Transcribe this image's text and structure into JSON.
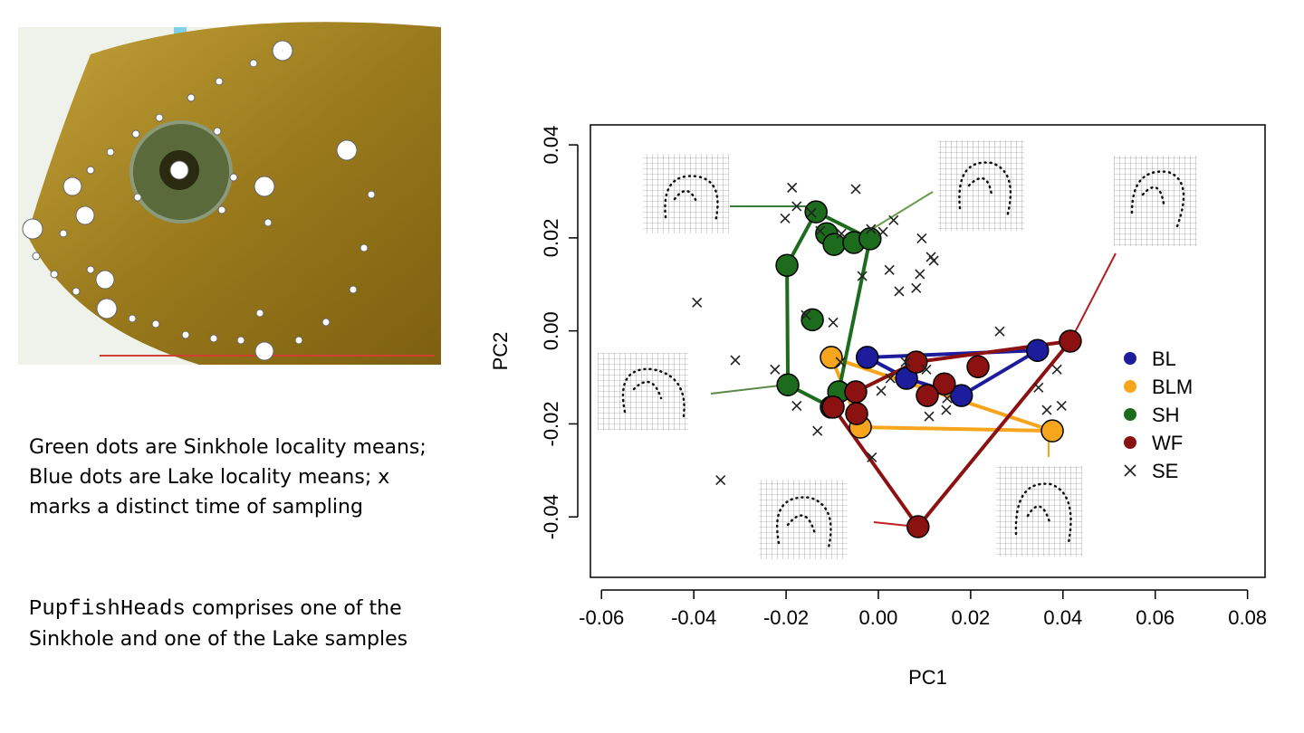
{
  "slide": {
    "caption_1": "Green dots are Sinkhole locality means; Blue dots are Lake locality means; x marks a distinct time of sampling",
    "caption_2_code": "PupfishHeads",
    "caption_2_text": "comprises one of the Sinkhole and one of the Lake samples"
  },
  "chart_data": {
    "type": "scatter",
    "xlabel": "PC1",
    "ylabel": "PC2",
    "xlim": [
      -0.0624,
      0.0838
    ],
    "ylim": [
      -0.053,
      0.0443
    ],
    "xticks": [
      -0.06,
      -0.04,
      -0.02,
      {
        "value": 0,
        "label": "0.00"
      },
      0.02,
      0.04,
      0.06,
      0.08
    ],
    "yticks": [
      -0.04,
      -0.02,
      {
        "value": 0,
        "label": "0.00"
      },
      0.02,
      0.04
    ],
    "legend": "right",
    "series": [
      {
        "name": "BL",
        "color": "#1c1c9c",
        "x": [
          -0.0024,
          0.0345,
          0.018,
          0.0061
        ],
        "values": [
          -0.0057,
          -0.0042,
          -0.0139,
          -0.0102
        ]
      },
      {
        "name": "BLM",
        "color": "#f7a51c",
        "x": [
          -0.0102,
          -0.0039,
          0.0377
        ],
        "values": [
          -0.0057,
          -0.0207,
          -0.0215
        ]
      },
      {
        "name": "SH",
        "color": "#1d6b1d",
        "x": [
          -0.0135,
          -0.0112,
          -0.0096,
          -0.0053,
          -0.0018,
          -0.0198,
          -0.0143,
          -0.0196,
          -0.0102,
          -0.0086
        ],
        "values": [
          0.0256,
          0.0209,
          0.0186,
          0.019,
          0.0198,
          0.0141,
          0.0024,
          -0.0116,
          -0.0164,
          -0.0131
        ]
      },
      {
        "name": "WF",
        "color": "#8c1212",
        "x": [
          0.0416,
          0.0082,
          0.0216,
          0.0143,
          0.0106,
          -0.0049,
          -0.0047,
          -0.0098,
          0.0086
        ],
        "values": [
          -0.0022,
          -0.0067,
          -0.0077,
          -0.0114,
          -0.0139,
          -0.0131,
          -0.0178,
          -0.0164,
          -0.0421
        ]
      },
      {
        "name": "SE",
        "color": "#222222",
        "x": [
          -0.0187,
          -0.0049,
          -0.0202,
          -0.0177,
          -0.0145,
          -0.0126,
          -0.008,
          -0.0016,
          0.0033,
          0.001,
          0.0094,
          0.0114,
          0.012,
          0.0024,
          0.009,
          0.0082,
          0.0045,
          -0.0035,
          -0.0393,
          -0.0157,
          -0.0098,
          0.0263,
          -0.031,
          -0.0224,
          -0.0082,
          0.0059,
          0.0104,
          0.0026,
          0.0006,
          0.0149,
          0.0147,
          0.011,
          -0.0177,
          -0.0132,
          -0.0014,
          -0.0342,
          0.0387,
          0.0347,
          0.0397,
          0.0365
        ],
        "values": [
          0.0308,
          0.0305,
          0.0242,
          0.0268,
          0.0254,
          0.0215,
          0.0209,
          0.0219,
          0.0238,
          0.0213,
          0.0199,
          0.0159,
          0.0151,
          0.0131,
          0.0122,
          0.0092,
          0.0085,
          0.0118,
          0.0061,
          0.0034,
          0.0018,
          -0.0001,
          -0.0063,
          -0.0083,
          -0.0067,
          -0.0067,
          -0.0083,
          -0.0102,
          -0.0129,
          -0.0145,
          -0.017,
          -0.0184,
          -0.0161,
          -0.0215,
          -0.0272,
          -0.0321,
          -0.0083,
          -0.0122,
          -0.0161,
          -0.017
        ]
      }
    ]
  }
}
